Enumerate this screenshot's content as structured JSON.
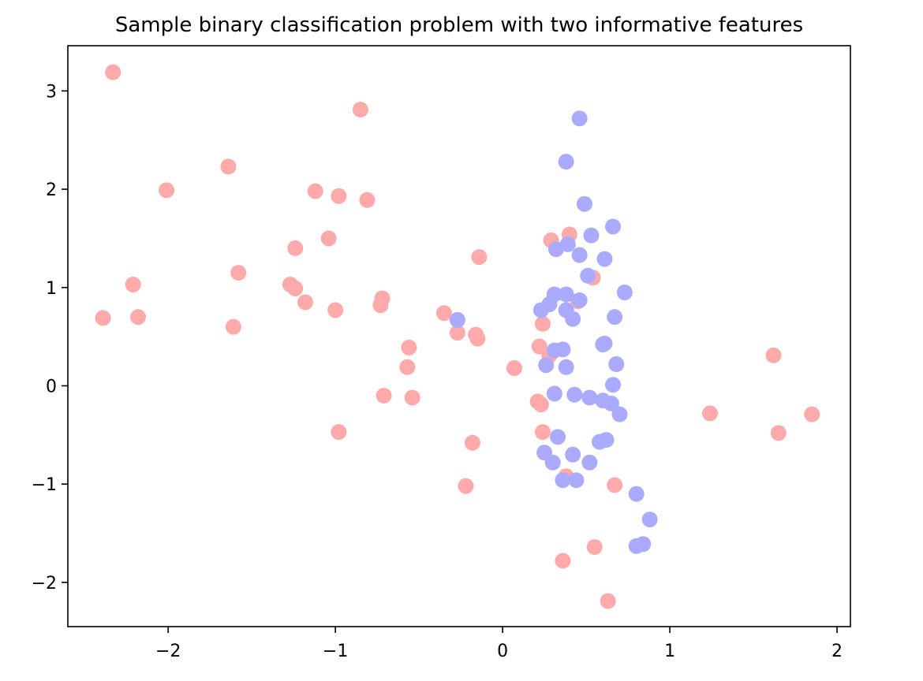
{
  "chart_data": {
    "type": "scatter",
    "title": "Sample binary classification problem with two informative features",
    "xlabel": "",
    "ylabel": "",
    "xlim": [
      -2.6,
      2.08
    ],
    "ylim": [
      -2.45,
      3.46
    ],
    "xticks": [
      -2,
      -1,
      0,
      1,
      2
    ],
    "yticks": [
      -2,
      -1,
      0,
      1,
      2,
      3
    ],
    "grid": false,
    "series": [
      {
        "color": "#ffaaaa",
        "points": [
          [
            -2.33,
            3.19
          ],
          [
            -0.85,
            2.81
          ],
          [
            -1.64,
            2.23
          ],
          [
            -2.01,
            1.99
          ],
          [
            -1.12,
            1.98
          ],
          [
            -0.98,
            1.93
          ],
          [
            -0.81,
            1.89
          ],
          [
            -1.04,
            1.5
          ],
          [
            -1.24,
            1.4
          ],
          [
            -1.58,
            1.15
          ],
          [
            -2.21,
            1.03
          ],
          [
            -1.27,
            1.03
          ],
          [
            -1.24,
            0.99
          ],
          [
            -1.18,
            0.85
          ],
          [
            -0.72,
            0.89
          ],
          [
            -0.73,
            0.82
          ],
          [
            -1.0,
            0.77
          ],
          [
            -2.39,
            0.69
          ],
          [
            -2.18,
            0.7
          ],
          [
            -1.61,
            0.6
          ],
          [
            -0.35,
            0.74
          ],
          [
            -0.27,
            0.54
          ],
          [
            -0.16,
            0.52
          ],
          [
            -0.15,
            0.48
          ],
          [
            -0.56,
            0.39
          ],
          [
            -0.57,
            0.19
          ],
          [
            -0.71,
            -0.1
          ],
          [
            -0.54,
            -0.12
          ],
          [
            -0.98,
            -0.47
          ],
          [
            -0.18,
            -0.58
          ],
          [
            -0.22,
            -1.02
          ],
          [
            -0.14,
            1.31
          ],
          [
            0.07,
            0.18
          ],
          [
            0.29,
            1.48
          ],
          [
            0.4,
            1.54
          ],
          [
            0.54,
            1.1
          ],
          [
            0.45,
            0.86
          ],
          [
            0.24,
            0.63
          ],
          [
            0.22,
            0.4
          ],
          [
            0.28,
            0.31
          ],
          [
            0.21,
            -0.16
          ],
          [
            0.23,
            -0.19
          ],
          [
            0.24,
            -0.47
          ],
          [
            0.38,
            -0.92
          ],
          [
            0.67,
            -1.01
          ],
          [
            0.55,
            -1.64
          ],
          [
            0.36,
            -1.78
          ],
          [
            0.63,
            -2.19
          ],
          [
            1.24,
            -0.28
          ],
          [
            1.62,
            0.31
          ],
          [
            1.65,
            -0.48
          ],
          [
            1.85,
            -0.29
          ]
        ]
      },
      {
        "color": "#aaaaff",
        "points": [
          [
            0.46,
            2.72
          ],
          [
            0.38,
            2.28
          ],
          [
            0.49,
            1.85
          ],
          [
            0.66,
            1.62
          ],
          [
            0.53,
            1.53
          ],
          [
            0.32,
            1.39
          ],
          [
            0.39,
            1.44
          ],
          [
            0.46,
            1.33
          ],
          [
            0.61,
            1.29
          ],
          [
            0.51,
            1.12
          ],
          [
            0.73,
            0.95
          ],
          [
            0.31,
            0.93
          ],
          [
            0.38,
            0.93
          ],
          [
            0.46,
            0.87
          ],
          [
            0.23,
            0.77
          ],
          [
            0.28,
            0.83
          ],
          [
            0.38,
            0.77
          ],
          [
            0.42,
            0.68
          ],
          [
            0.67,
            0.7
          ],
          [
            0.61,
            0.43
          ],
          [
            0.6,
            0.42
          ],
          [
            0.36,
            0.37
          ],
          [
            0.31,
            0.36
          ],
          [
            -0.27,
            0.67
          ],
          [
            0.26,
            0.21
          ],
          [
            0.38,
            0.19
          ],
          [
            0.68,
            0.22
          ],
          [
            0.66,
            0.01
          ],
          [
            0.31,
            -0.08
          ],
          [
            0.43,
            -0.09
          ],
          [
            0.52,
            -0.12
          ],
          [
            0.6,
            -0.15
          ],
          [
            0.65,
            -0.18
          ],
          [
            0.7,
            -0.29
          ],
          [
            0.33,
            -0.52
          ],
          [
            0.58,
            -0.57
          ],
          [
            0.62,
            -0.55
          ],
          [
            0.25,
            -0.68
          ],
          [
            0.3,
            -0.78
          ],
          [
            0.42,
            -0.7
          ],
          [
            0.52,
            -0.78
          ],
          [
            0.36,
            -0.96
          ],
          [
            0.44,
            -0.96
          ],
          [
            0.8,
            -1.1
          ],
          [
            0.88,
            -1.36
          ],
          [
            0.84,
            -1.61
          ],
          [
            0.8,
            -1.63
          ]
        ]
      }
    ]
  }
}
